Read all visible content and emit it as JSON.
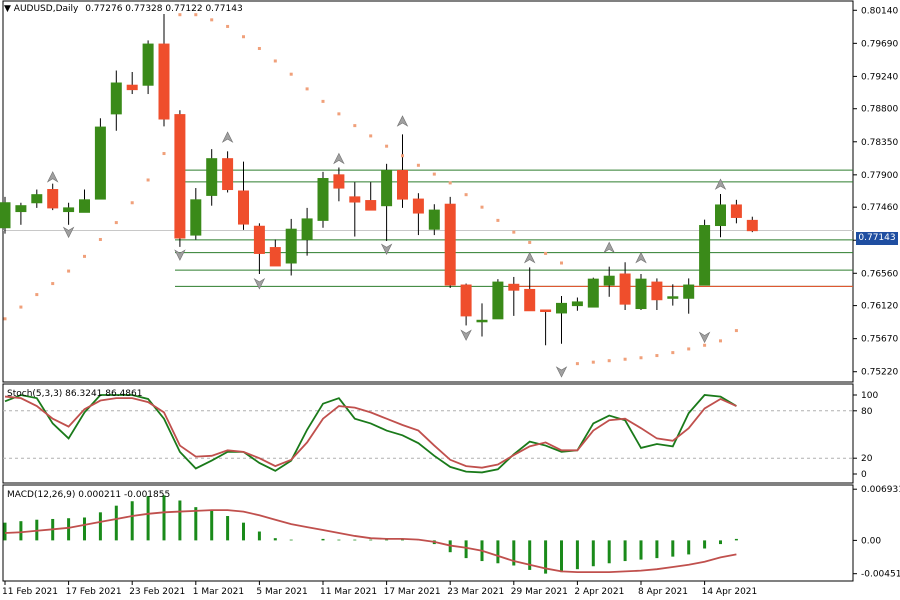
{
  "header": {
    "symbol": "AUDUSD,Daily",
    "ohlc": "0.77276 0.77328 0.77122 0.77143"
  },
  "colors": {
    "bull": "#3a8a19",
    "bear": "#ef4e2c",
    "sar": "#f0a07a",
    "level": "#2d7d2d",
    "stoch_main": "#1a7a1a",
    "stoch_signal": "#c0504d",
    "macd_hist": "#1a8a1a",
    "macd_signal": "#c0504d",
    "price_tag_bg": "#1f4ea1"
  },
  "chart_data": [
    {
      "type": "candlestick",
      "panel": "price",
      "title": "AUDUSD,Daily",
      "current_price": "0.77143",
      "ylim": [
        0.7508,
        0.8028
      ],
      "y_ticks": [
        "0.80140",
        "0.79690",
        "0.79240",
        "0.78800",
        "0.78350",
        "0.77900",
        "0.77460",
        "0.77010",
        "0.76560",
        "0.76120",
        "0.75670",
        "0.75220"
      ],
      "x_tick_labels": [
        {
          "index": 0,
          "label": "11 Feb 2021"
        },
        {
          "index": 4,
          "label": "17 Feb 2021"
        },
        {
          "index": 8,
          "label": "23 Feb 2021"
        },
        {
          "index": 12,
          "label": "1 Mar 2021"
        },
        {
          "index": 16,
          "label": "5 Mar 2021"
        },
        {
          "index": 20,
          "label": "11 Mar 2021"
        },
        {
          "index": 24,
          "label": "17 Mar 2021"
        },
        {
          "index": 28,
          "label": "23 Mar 2021"
        },
        {
          "index": 32,
          "label": "29 Mar 2021"
        },
        {
          "index": 36,
          "label": "2 Apr 2021"
        },
        {
          "index": 40,
          "label": "8 Apr 2021"
        },
        {
          "index": 44,
          "label": "14 Apr 2021"
        }
      ],
      "candles": [
        {
          "o": 0.7718,
          "h": 0.776,
          "l": 0.771,
          "c": 0.7752
        },
        {
          "o": 0.774,
          "h": 0.7752,
          "l": 0.7722,
          "c": 0.7748
        },
        {
          "o": 0.7752,
          "h": 0.777,
          "l": 0.7745,
          "c": 0.7763
        },
        {
          "o": 0.777,
          "h": 0.7778,
          "l": 0.7742,
          "c": 0.7745
        },
        {
          "o": 0.774,
          "h": 0.7752,
          "l": 0.7722,
          "c": 0.7745
        },
        {
          "o": 0.7739,
          "h": 0.777,
          "l": 0.7739,
          "c": 0.7756
        },
        {
          "o": 0.7757,
          "h": 0.7867,
          "l": 0.7757,
          "c": 0.7855
        },
        {
          "o": 0.7873,
          "h": 0.7932,
          "l": 0.785,
          "c": 0.7915
        },
        {
          "o": 0.7912,
          "h": 0.793,
          "l": 0.79,
          "c": 0.7906
        },
        {
          "o": 0.7912,
          "h": 0.7973,
          "l": 0.79,
          "c": 0.7968
        },
        {
          "o": 0.7968,
          "h": 0.8009,
          "l": 0.7856,
          "c": 0.7866
        },
        {
          "o": 0.7872,
          "h": 0.7878,
          "l": 0.7692,
          "c": 0.7704
        },
        {
          "o": 0.7708,
          "h": 0.7772,
          "l": 0.7702,
          "c": 0.7756
        },
        {
          "o": 0.7762,
          "h": 0.7825,
          "l": 0.7748,
          "c": 0.7812
        },
        {
          "o": 0.7812,
          "h": 0.7822,
          "l": 0.7766,
          "c": 0.777
        },
        {
          "o": 0.7768,
          "h": 0.7808,
          "l": 0.7715,
          "c": 0.7723
        },
        {
          "o": 0.772,
          "h": 0.7724,
          "l": 0.7655,
          "c": 0.7683
        },
        {
          "o": 0.7691,
          "h": 0.7702,
          "l": 0.7666,
          "c": 0.7666
        },
        {
          "o": 0.767,
          "h": 0.773,
          "l": 0.7653,
          "c": 0.7716
        },
        {
          "o": 0.7702,
          "h": 0.7745,
          "l": 0.768,
          "c": 0.773
        },
        {
          "o": 0.7728,
          "h": 0.7794,
          "l": 0.7718,
          "c": 0.7785
        },
        {
          "o": 0.779,
          "h": 0.78,
          "l": 0.7754,
          "c": 0.7772
        },
        {
          "o": 0.776,
          "h": 0.778,
          "l": 0.7706,
          "c": 0.7753
        },
        {
          "o": 0.7755,
          "h": 0.778,
          "l": 0.7742,
          "c": 0.7742
        },
        {
          "o": 0.7748,
          "h": 0.7805,
          "l": 0.77,
          "c": 0.7796
        },
        {
          "o": 0.7796,
          "h": 0.7845,
          "l": 0.7745,
          "c": 0.7757
        },
        {
          "o": 0.7757,
          "h": 0.7765,
          "l": 0.7708,
          "c": 0.7738
        },
        {
          "o": 0.7716,
          "h": 0.775,
          "l": 0.7708,
          "c": 0.7742
        },
        {
          "o": 0.775,
          "h": 0.776,
          "l": 0.7636,
          "c": 0.764
        },
        {
          "o": 0.764,
          "h": 0.7642,
          "l": 0.7585,
          "c": 0.7598
        },
        {
          "o": 0.7592,
          "h": 0.7615,
          "l": 0.757,
          "c": 0.7592
        },
        {
          "o": 0.7594,
          "h": 0.7648,
          "l": 0.7594,
          "c": 0.7644
        },
        {
          "o": 0.7641,
          "h": 0.7651,
          "l": 0.7598,
          "c": 0.7633
        },
        {
          "o": 0.7634,
          "h": 0.7664,
          "l": 0.7606,
          "c": 0.7605
        },
        {
          "o": 0.7606,
          "h": 0.7604,
          "l": 0.7558,
          "c": 0.7605
        },
        {
          "o": 0.7602,
          "h": 0.7625,
          "l": 0.756,
          "c": 0.7615
        },
        {
          "o": 0.7612,
          "h": 0.7623,
          "l": 0.7605,
          "c": 0.7617
        },
        {
          "o": 0.761,
          "h": 0.765,
          "l": 0.761,
          "c": 0.7648
        },
        {
          "o": 0.764,
          "h": 0.7665,
          "l": 0.7624,
          "c": 0.7652
        },
        {
          "o": 0.7655,
          "h": 0.7671,
          "l": 0.7606,
          "c": 0.7614
        },
        {
          "o": 0.7608,
          "h": 0.7655,
          "l": 0.7606,
          "c": 0.7648
        },
        {
          "o": 0.7644,
          "h": 0.7649,
          "l": 0.7606,
          "c": 0.762
        },
        {
          "o": 0.7622,
          "h": 0.7641,
          "l": 0.7612,
          "c": 0.7624
        },
        {
          "o": 0.7622,
          "h": 0.7649,
          "l": 0.7601,
          "c": 0.764
        },
        {
          "o": 0.764,
          "h": 0.7729,
          "l": 0.764,
          "c": 0.7721
        },
        {
          "o": 0.7721,
          "h": 0.7764,
          "l": 0.7705,
          "c": 0.7749
        },
        {
          "o": 0.7749,
          "h": 0.7756,
          "l": 0.7724,
          "c": 0.7732
        },
        {
          "o": 0.7728,
          "h": 0.7733,
          "l": 0.7712,
          "c": 0.7714
        }
      ],
      "parabolic_sar": [
        {
          "i": 0,
          "v": 0.7594
        },
        {
          "i": 1,
          "v": 0.761
        },
        {
          "i": 2,
          "v": 0.7627
        },
        {
          "i": 3,
          "v": 0.7642
        },
        {
          "i": 4,
          "v": 0.7659
        },
        {
          "i": 5,
          "v": 0.7679
        },
        {
          "i": 6,
          "v": 0.7702
        },
        {
          "i": 7,
          "v": 0.7725
        },
        {
          "i": 8,
          "v": 0.7752
        },
        {
          "i": 9,
          "v": 0.7783
        },
        {
          "i": 10,
          "v": 0.7819
        },
        {
          "i": 11,
          "v": 0.8008
        },
        {
          "i": 12,
          "v": 0.8008
        },
        {
          "i": 13,
          "v": 0.8001
        },
        {
          "i": 14,
          "v": 0.7992
        },
        {
          "i": 15,
          "v": 0.7978
        },
        {
          "i": 16,
          "v": 0.7962
        },
        {
          "i": 17,
          "v": 0.7945
        },
        {
          "i": 18,
          "v": 0.7927
        },
        {
          "i": 19,
          "v": 0.7907
        },
        {
          "i": 20,
          "v": 0.789
        },
        {
          "i": 21,
          "v": 0.7873
        },
        {
          "i": 22,
          "v": 0.7857
        },
        {
          "i": 23,
          "v": 0.7843
        },
        {
          "i": 24,
          "v": 0.7829
        },
        {
          "i": 25,
          "v": 0.7816
        },
        {
          "i": 26,
          "v": 0.7803
        },
        {
          "i": 27,
          "v": 0.7791
        },
        {
          "i": 28,
          "v": 0.7779
        },
        {
          "i": 29,
          "v": 0.7763
        },
        {
          "i": 30,
          "v": 0.7746
        },
        {
          "i": 31,
          "v": 0.7728
        },
        {
          "i": 32,
          "v": 0.7712
        },
        {
          "i": 33,
          "v": 0.7698
        },
        {
          "i": 34,
          "v": 0.7683
        },
        {
          "i": 35,
          "v": 0.767
        },
        {
          "i": 36,
          "v": 0.7533
        },
        {
          "i": 37,
          "v": 0.7535
        },
        {
          "i": 38,
          "v": 0.7537
        },
        {
          "i": 39,
          "v": 0.7539
        },
        {
          "i": 40,
          "v": 0.7541
        },
        {
          "i": 41,
          "v": 0.7544
        },
        {
          "i": 42,
          "v": 0.7548
        },
        {
          "i": 43,
          "v": 0.7553
        },
        {
          "i": 44,
          "v": 0.7558
        },
        {
          "i": 45,
          "v": 0.7564
        },
        {
          "i": 46,
          "v": 0.7578
        }
      ],
      "horizontal_levels": [
        0.77965,
        0.77804,
        0.77014,
        0.76841,
        0.76603,
        0.76382
      ],
      "fractals": [
        {
          "i": 3,
          "v": 0.7786,
          "dir": "up"
        },
        {
          "i": 4,
          "v": 0.7713,
          "dir": "down"
        },
        {
          "i": 11,
          "v": 0.7682,
          "dir": "down"
        },
        {
          "i": 14,
          "v": 0.784,
          "dir": "up"
        },
        {
          "i": 16,
          "v": 0.7643,
          "dir": "down"
        },
        {
          "i": 21,
          "v": 0.7811,
          "dir": "up"
        },
        {
          "i": 24,
          "v": 0.769,
          "dir": "down"
        },
        {
          "i": 25,
          "v": 0.7862,
          "dir": "up"
        },
        {
          "i": 29,
          "v": 0.7573,
          "dir": "down"
        },
        {
          "i": 33,
          "v": 0.7676,
          "dir": "up"
        },
        {
          "i": 35,
          "v": 0.7523,
          "dir": "down"
        },
        {
          "i": 38,
          "v": 0.769,
          "dir": "up"
        },
        {
          "i": 40,
          "v": 0.7676,
          "dir": "up"
        },
        {
          "i": 44,
          "v": 0.757,
          "dir": "down"
        },
        {
          "i": 45,
          "v": 0.7776,
          "dir": "up"
        }
      ]
    },
    {
      "type": "line",
      "panel": "stochastic",
      "title": "Stoch(5,3,3) 86.3241 86.4861",
      "ylim": [
        0,
        100
      ],
      "y_ticks": [
        100,
        80,
        20,
        0
      ],
      "levels": [
        80,
        20
      ],
      "series": [
        {
          "name": "main",
          "values": [
            92,
            100,
            96,
            64,
            45,
            78,
            100,
            100,
            100,
            95,
            70,
            28,
            7,
            17,
            28,
            28,
            14,
            4,
            17,
            56,
            89,
            96,
            70,
            64,
            55,
            49,
            39,
            23,
            9,
            3,
            2,
            6,
            25,
            41,
            36,
            28,
            30,
            64,
            74,
            68,
            33,
            38,
            35,
            77,
            100,
            98,
            86
          ]
        },
        {
          "name": "signal",
          "values": [
            98,
            96,
            86,
            70,
            60,
            82,
            93,
            96,
            96,
            91,
            78,
            36,
            22,
            23,
            30,
            28,
            20,
            10,
            18,
            40,
            70,
            86,
            84,
            78,
            70,
            62,
            55,
            36,
            18,
            10,
            8,
            12,
            24,
            35,
            40,
            30,
            30,
            55,
            68,
            70,
            58,
            45,
            42,
            58,
            83,
            95,
            86
          ]
        }
      ]
    },
    {
      "type": "bar",
      "panel": "macd",
      "title": "MACD(12,26,9) 0.000211 -0.001855",
      "ylim": [
        -0.0055,
        0.0075
      ],
      "y_ticks": [
        "0.006931",
        "0.00",
        "-0.00451"
      ],
      "series": [
        {
          "name": "histogram",
          "values": [
            0.0024,
            0.0026,
            0.0028,
            0.0029,
            0.003,
            0.0031,
            0.0038,
            0.0047,
            0.0053,
            0.006,
            0.0061,
            0.0054,
            0.0045,
            0.004,
            0.0033,
            0.0024,
            0.0012,
            0.0003,
            0.0001,
            0.0,
            0.0002,
            0.0001,
            0.0001,
            0.0001,
            0.0003,
            0.0002,
            0.0001,
            -0.0005,
            -0.0016,
            -0.0024,
            -0.0028,
            -0.0031,
            -0.0034,
            -0.004,
            -0.0045,
            -0.0043,
            -0.0039,
            -0.0035,
            -0.0031,
            -0.0028,
            -0.0026,
            -0.0024,
            -0.0022,
            -0.0019,
            -0.0011,
            -0.0005,
            0.0002
          ]
        },
        {
          "name": "signal",
          "values": [
            0.001,
            0.0011,
            0.0013,
            0.0015,
            0.0017,
            0.0021,
            0.0025,
            0.0029,
            0.0033,
            0.0036,
            0.0038,
            0.0039,
            0.004,
            0.0041,
            0.0041,
            0.0039,
            0.0034,
            0.0028,
            0.0022,
            0.0018,
            0.0014,
            0.001,
            0.0006,
            0.0003,
            0.0002,
            0.0002,
            0.0001,
            -0.0002,
            -0.0007,
            -0.001,
            -0.0014,
            -0.0021,
            -0.0028,
            -0.0033,
            -0.0038,
            -0.0042,
            -0.0043,
            -0.0043,
            -0.0043,
            -0.0042,
            -0.0041,
            -0.0039,
            -0.0036,
            -0.0033,
            -0.0029,
            -0.0023,
            -0.0019
          ]
        }
      ]
    }
  ]
}
